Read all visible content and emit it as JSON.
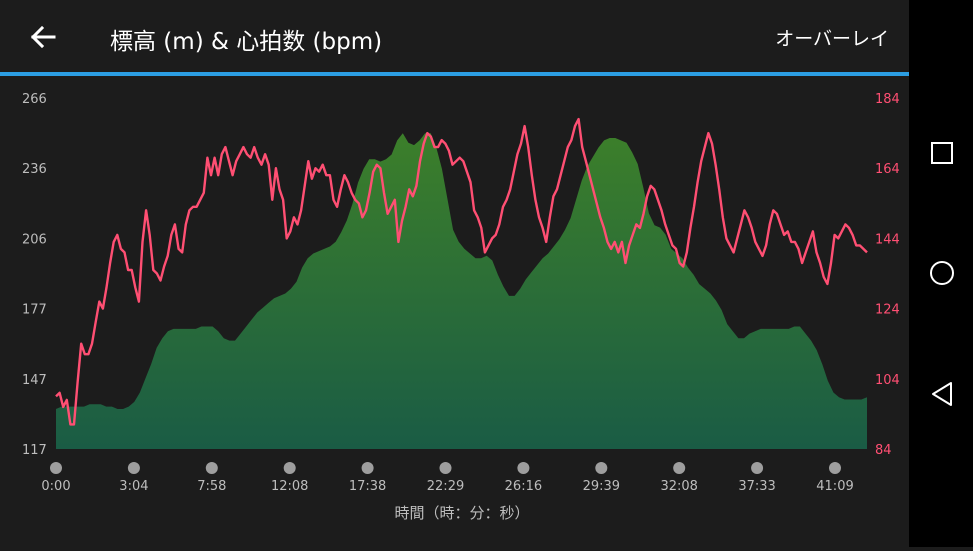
{
  "header": {
    "title": "標高 (m) & 心拍数 (bpm)",
    "overlay_label": "オーバーレイ"
  },
  "colors": {
    "background": "#1c1c1c",
    "accent_bar": "#2c9ee3",
    "heart_rate_line": "#ff4f73",
    "elevation_fill_top": "#3c7f2a",
    "elevation_fill_bottom": "#1a5c45"
  },
  "nav_icons": [
    "square-icon",
    "circle-icon",
    "triangle-back-icon"
  ],
  "chart_data": {
    "type": "area",
    "xlabel": "時間（時：分：秒）",
    "x_ticks": [
      "0:00",
      "3:04",
      "7:58",
      "12:08",
      "17:38",
      "22:29",
      "26:16",
      "29:39",
      "32:08",
      "37:33",
      "41:09"
    ],
    "left_axis": {
      "ticks": [
        "266",
        "236",
        "206",
        "177",
        "147",
        "117"
      ],
      "ylim": [
        117,
        266
      ]
    },
    "right_axis": {
      "ticks": [
        "184",
        "164",
        "144",
        "124",
        "104",
        "84"
      ],
      "ylim": [
        84,
        184
      ]
    },
    "grid": false,
    "series": [
      {
        "axis": "left",
        "style": "area",
        "values": [
          134,
          135,
          135,
          135,
          135,
          135,
          136,
          136,
          136,
          135,
          135,
          134,
          134,
          135,
          137,
          141,
          147,
          153,
          160,
          164,
          167,
          168,
          168,
          168,
          168,
          168,
          169,
          169,
          169,
          167,
          164,
          163,
          163,
          166,
          169,
          172,
          175,
          177,
          179,
          181,
          182,
          183,
          185,
          188,
          194,
          198,
          200,
          201,
          202,
          203,
          205,
          209,
          214,
          221,
          230,
          236,
          240,
          240,
          239,
          240,
          242,
          248,
          251,
          247,
          246,
          248,
          251,
          251,
          245,
          236,
          223,
          210,
          205,
          202,
          200,
          198,
          198,
          199,
          197,
          191,
          186,
          182,
          182,
          185,
          189,
          192,
          195,
          198,
          200,
          203,
          206,
          210,
          215,
          223,
          231,
          237,
          241,
          245,
          248,
          249,
          249,
          248,
          247,
          243,
          238,
          228,
          217,
          212,
          211,
          208,
          202,
          200,
          198,
          194,
          191,
          187,
          185,
          183,
          180,
          176,
          170,
          167,
          164,
          164,
          166,
          167,
          168,
          168,
          168,
          168,
          168,
          168,
          169,
          169,
          166,
          163,
          159,
          153,
          146,
          141,
          139,
          138,
          138,
          138,
          138,
          139
        ]
      },
      {
        "axis": "right",
        "style": "line",
        "values": [
          99,
          100,
          96,
          98,
          91,
          91,
          103,
          114,
          111,
          111,
          114,
          120,
          126,
          124,
          130,
          137,
          143,
          145,
          141,
          140,
          135,
          135,
          130,
          126,
          143,
          152,
          145,
          135,
          134,
          132,
          136,
          139,
          145,
          148,
          141,
          140,
          148,
          152,
          153,
          153,
          155,
          157,
          167,
          162,
          167,
          162,
          168,
          170,
          166,
          162,
          166,
          168,
          170,
          168,
          167,
          170,
          167,
          165,
          168,
          165,
          155,
          164,
          158,
          155,
          144,
          146,
          150,
          148,
          152,
          159,
          166,
          161,
          164,
          163,
          165,
          162,
          162,
          155,
          153,
          158,
          162,
          160,
          157,
          155,
          154,
          150,
          152,
          157,
          163,
          165,
          164,
          157,
          151,
          153,
          155,
          143,
          149,
          153,
          158,
          156,
          159,
          166,
          171,
          174,
          173,
          170,
          170,
          172,
          171,
          169,
          165,
          166,
          167,
          166,
          163,
          160,
          152,
          150,
          147,
          140,
          142,
          144,
          145,
          148,
          153,
          155,
          158,
          163,
          168,
          171,
          176,
          170,
          162,
          155,
          150,
          147,
          143,
          150,
          156,
          158,
          162,
          166,
          170,
          172,
          176,
          178,
          170,
          166,
          162,
          158,
          154,
          150,
          147,
          143,
          141,
          143,
          140,
          143,
          137,
          142,
          145,
          148,
          147,
          151,
          156,
          159,
          158,
          155,
          152,
          148,
          145,
          142,
          141,
          137,
          136,
          140,
          147,
          153,
          160,
          166,
          170,
          174,
          171,
          165,
          158,
          150,
          144,
          142,
          140,
          144,
          148,
          152,
          150,
          147,
          143,
          141,
          139,
          142,
          148,
          152,
          151,
          148,
          145,
          146,
          143,
          143,
          141,
          137,
          140,
          143,
          146,
          140,
          137,
          133,
          131,
          137,
          145,
          144,
          146,
          148,
          147,
          145,
          142,
          142,
          141,
          140
        ]
      }
    ]
  }
}
